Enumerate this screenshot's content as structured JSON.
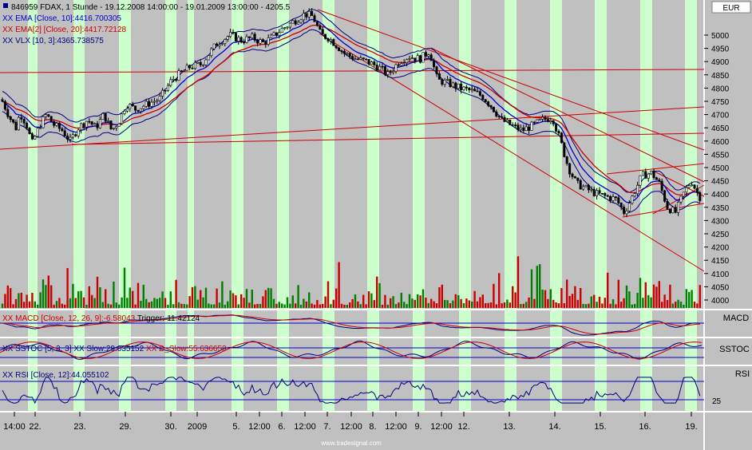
{
  "chart_data": [
    {
      "type": "candlestick",
      "title": "846959 FDAX, 1 Stunde - 19.12.2008 14:00:00 - 19.01.2009 13:00:00 - 4205.5",
      "legend": [
        {
          "label": "XX EMA [Close, 10]:4416.700305",
          "color": "#0000cc"
        },
        {
          "label": "XX EMA[2] [Close, 20]:4417.72128",
          "color": "#cc0000"
        },
        {
          "label": "XX VLX [10, 3]:4365.738575",
          "color": "#000080"
        }
      ],
      "currency_label": "EUR",
      "y_ticks": [
        5000,
        4950,
        4900,
        4850,
        4800,
        4750,
        4700,
        4650,
        4600,
        4550,
        4500,
        4450,
        4400,
        4350,
        4300,
        4250,
        4200,
        4150,
        4100,
        4050,
        4000
      ],
      "ylim": [
        3990,
        5050
      ],
      "price_path": [
        [
          0,
          4770
        ],
        [
          12,
          4690
        ],
        [
          20,
          4650
        ],
        [
          25,
          4705
        ],
        [
          33,
          4665
        ],
        [
          40,
          4590
        ],
        [
          50,
          4660
        ],
        [
          58,
          4700
        ],
        [
          68,
          4660
        ],
        [
          78,
          4640
        ],
        [
          88,
          4600
        ],
        [
          98,
          4650
        ],
        [
          110,
          4680
        ],
        [
          120,
          4650
        ],
        [
          130,
          4700
        ],
        [
          140,
          4640
        ],
        [
          150,
          4680
        ],
        [
          158,
          4740
        ],
        [
          170,
          4720
        ],
        [
          185,
          4740
        ],
        [
          200,
          4760
        ],
        [
          215,
          4830
        ],
        [
          228,
          4860
        ],
        [
          238,
          4880
        ],
        [
          252,
          4890
        ],
        [
          262,
          4930
        ],
        [
          272,
          4970
        ],
        [
          288,
          5000
        ],
        [
          302,
          4980
        ],
        [
          316,
          4990
        ],
        [
          330,
          4970
        ],
        [
          340,
          4990
        ],
        [
          352,
          5020
        ],
        [
          362,
          5040
        ],
        [
          372,
          5060
        ],
        [
          382,
          5080
        ],
        [
          392,
          5070
        ],
        [
          402,
          5000
        ],
        [
          412,
          4990
        ],
        [
          422,
          4960
        ],
        [
          432,
          4930
        ],
        [
          446,
          4910
        ],
        [
          460,
          4900
        ],
        [
          474,
          4880
        ],
        [
          486,
          4850
        ],
        [
          500,
          4900
        ],
        [
          512,
          4920
        ],
        [
          526,
          4910
        ],
        [
          538,
          4940
        ],
        [
          548,
          4830
        ],
        [
          560,
          4820
        ],
        [
          576,
          4800
        ],
        [
          590,
          4790
        ],
        [
          604,
          4770
        ],
        [
          616,
          4730
        ],
        [
          628,
          4680
        ],
        [
          640,
          4660
        ],
        [
          654,
          4640
        ],
        [
          668,
          4660
        ],
        [
          680,
          4680
        ],
        [
          692,
          4690
        ],
        [
          702,
          4600
        ],
        [
          712,
          4500
        ],
        [
          722,
          4440
        ],
        [
          734,
          4420
        ],
        [
          748,
          4400
        ],
        [
          760,
          4390
        ],
        [
          772,
          4380
        ],
        [
          782,
          4330
        ],
        [
          792,
          4390
        ],
        [
          804,
          4470
        ],
        [
          816,
          4480
        ],
        [
          826,
          4440
        ],
        [
          836,
          4350
        ],
        [
          846,
          4330
        ],
        [
          856,
          4400
        ],
        [
          866,
          4450
        ],
        [
          876,
          4390
        ]
      ],
      "green_bands": [
        [
          35,
          47
        ],
        [
          92,
          106
        ],
        [
          149,
          164
        ],
        [
          207,
          221
        ],
        [
          235,
          243
        ],
        [
          290,
          305
        ],
        [
          347,
          362
        ],
        [
          404,
          419
        ],
        [
          460,
          475
        ],
        [
          517,
          532
        ],
        [
          575,
          590
        ],
        [
          632,
          647
        ],
        [
          689,
          704
        ],
        [
          745,
          760
        ],
        [
          802,
          817
        ],
        [
          858,
          873
        ]
      ],
      "x_ticks": [
        "14:00",
        "22.",
        "23.",
        "29.",
        "30.",
        "2009",
        "5.",
        "12:00",
        "6.",
        "12:00",
        "7.",
        "12:00",
        "8.",
        "12:00",
        "9.",
        "12:00",
        "12.",
        "13.",
        "14.",
        "15.",
        "16.",
        "19."
      ],
      "watermark": "www.tradesignal.com"
    },
    {
      "type": "line",
      "panel": "MACD",
      "legend_label": "XX MACD [Close, 12, 26, 9]:-6.58043",
      "trigger_label": "Trigger:-11.42124",
      "axis_label": "MACD"
    },
    {
      "type": "line",
      "panel": "SSTOC",
      "legend_label": "XX SSTOC [5, 3, 3]",
      "k_label": "XX Slow:29.835152",
      "d_label": "XX D_Slow:55.636653",
      "axis_label": "SSTOC"
    },
    {
      "type": "line",
      "panel": "RSI",
      "legend_label": "XX RSI [Close, 12]:44.055102",
      "axis_label": "RSI",
      "y_tick": "25"
    }
  ]
}
